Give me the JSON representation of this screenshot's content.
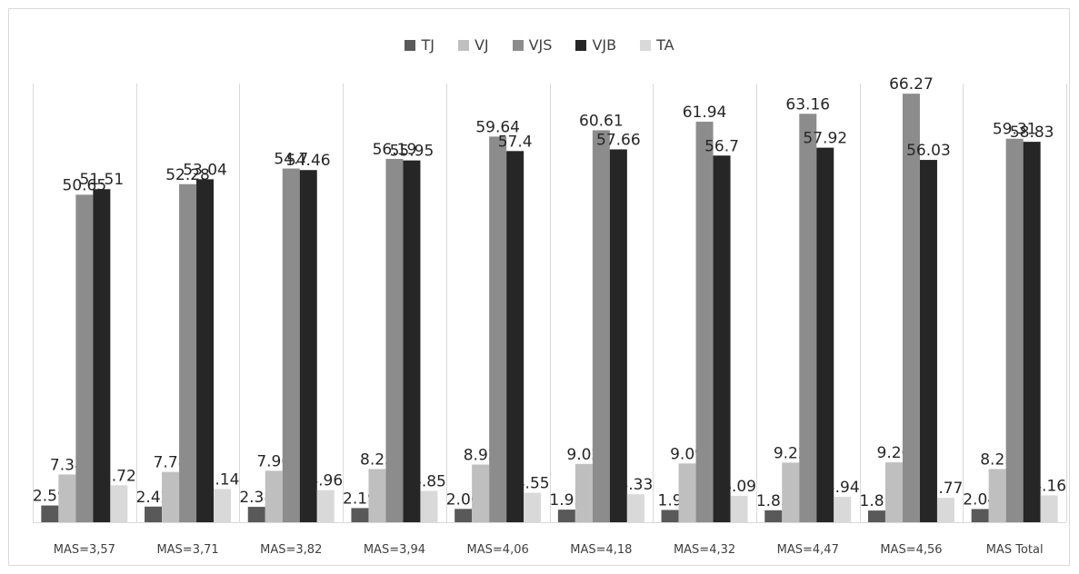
{
  "chart_data": {
    "type": "bar",
    "title": "",
    "xlabel": "",
    "ylabel": "",
    "ylim": [
      0,
      72
    ],
    "grid": false,
    "legend_position": "top",
    "categories": [
      "MAS=3,57",
      "MAS=3,71",
      "MAS=3,82",
      "MAS=3,94",
      "MAS=4,06",
      "MAS=4,18",
      "MAS=4,32",
      "MAS=4,47",
      "MAS=4,56",
      "MAS Total"
    ],
    "series": [
      {
        "name": "TJ",
        "color": "#595959",
        "values": [
          2.59,
          2.42,
          2.38,
          2.19,
          2.06,
          1.95,
          1.9,
          1.85,
          1.81,
          2.04
        ],
        "labels": [
          "2.59",
          "2.42",
          "2.38",
          "2.19",
          "2.06",
          "1.95",
          "1.9",
          "1.85",
          "1.81",
          "2.04"
        ]
      },
      {
        "name": "VJ",
        "color": "#bfbfbf",
        "values": [
          7.38,
          7.78,
          7.96,
          8.23,
          8.92,
          9.02,
          9.09,
          9.22,
          9.26,
          8.23
        ],
        "labels": [
          "7.38",
          "7.78",
          "7.96",
          "8.23",
          "8.92",
          "9.02",
          "9.09",
          "9.22",
          "9.26",
          "8.23"
        ]
      },
      {
        "name": "VJS",
        "color": "#8c8c8c",
        "values": [
          50.65,
          52.28,
          54.7,
          56.19,
          59.64,
          60.61,
          61.94,
          63.16,
          66.27,
          59.31
        ],
        "labels": [
          "50.65",
          "52.28",
          "54.7",
          "56.19",
          "59.64",
          "60.61",
          "61.94",
          "63.16",
          "66.27",
          "59.31"
        ]
      },
      {
        "name": "VJB",
        "color": "#262626",
        "values": [
          51.51,
          53.04,
          54.46,
          55.95,
          57.4,
          57.66,
          56.7,
          57.92,
          56.03,
          58.83
        ],
        "labels": [
          "51.51",
          "53.04",
          "54.46",
          "55.95",
          "57.4",
          "57.66",
          "56.7",
          "57.92",
          "56.03",
          "58.83"
        ]
      },
      {
        "name": "TA",
        "color": "#d9d9d9",
        "values": [
          5.72,
          5.14,
          4.96,
          4.85,
          4.55,
          4.33,
          4.09,
          3.94,
          3.77,
          4.16
        ],
        "labels": [
          "5.72",
          "5.14",
          "4.96",
          "4.85",
          "4.55",
          "4.33",
          "4.09",
          "3.94",
          "3.77",
          "4.16"
        ]
      }
    ]
  }
}
